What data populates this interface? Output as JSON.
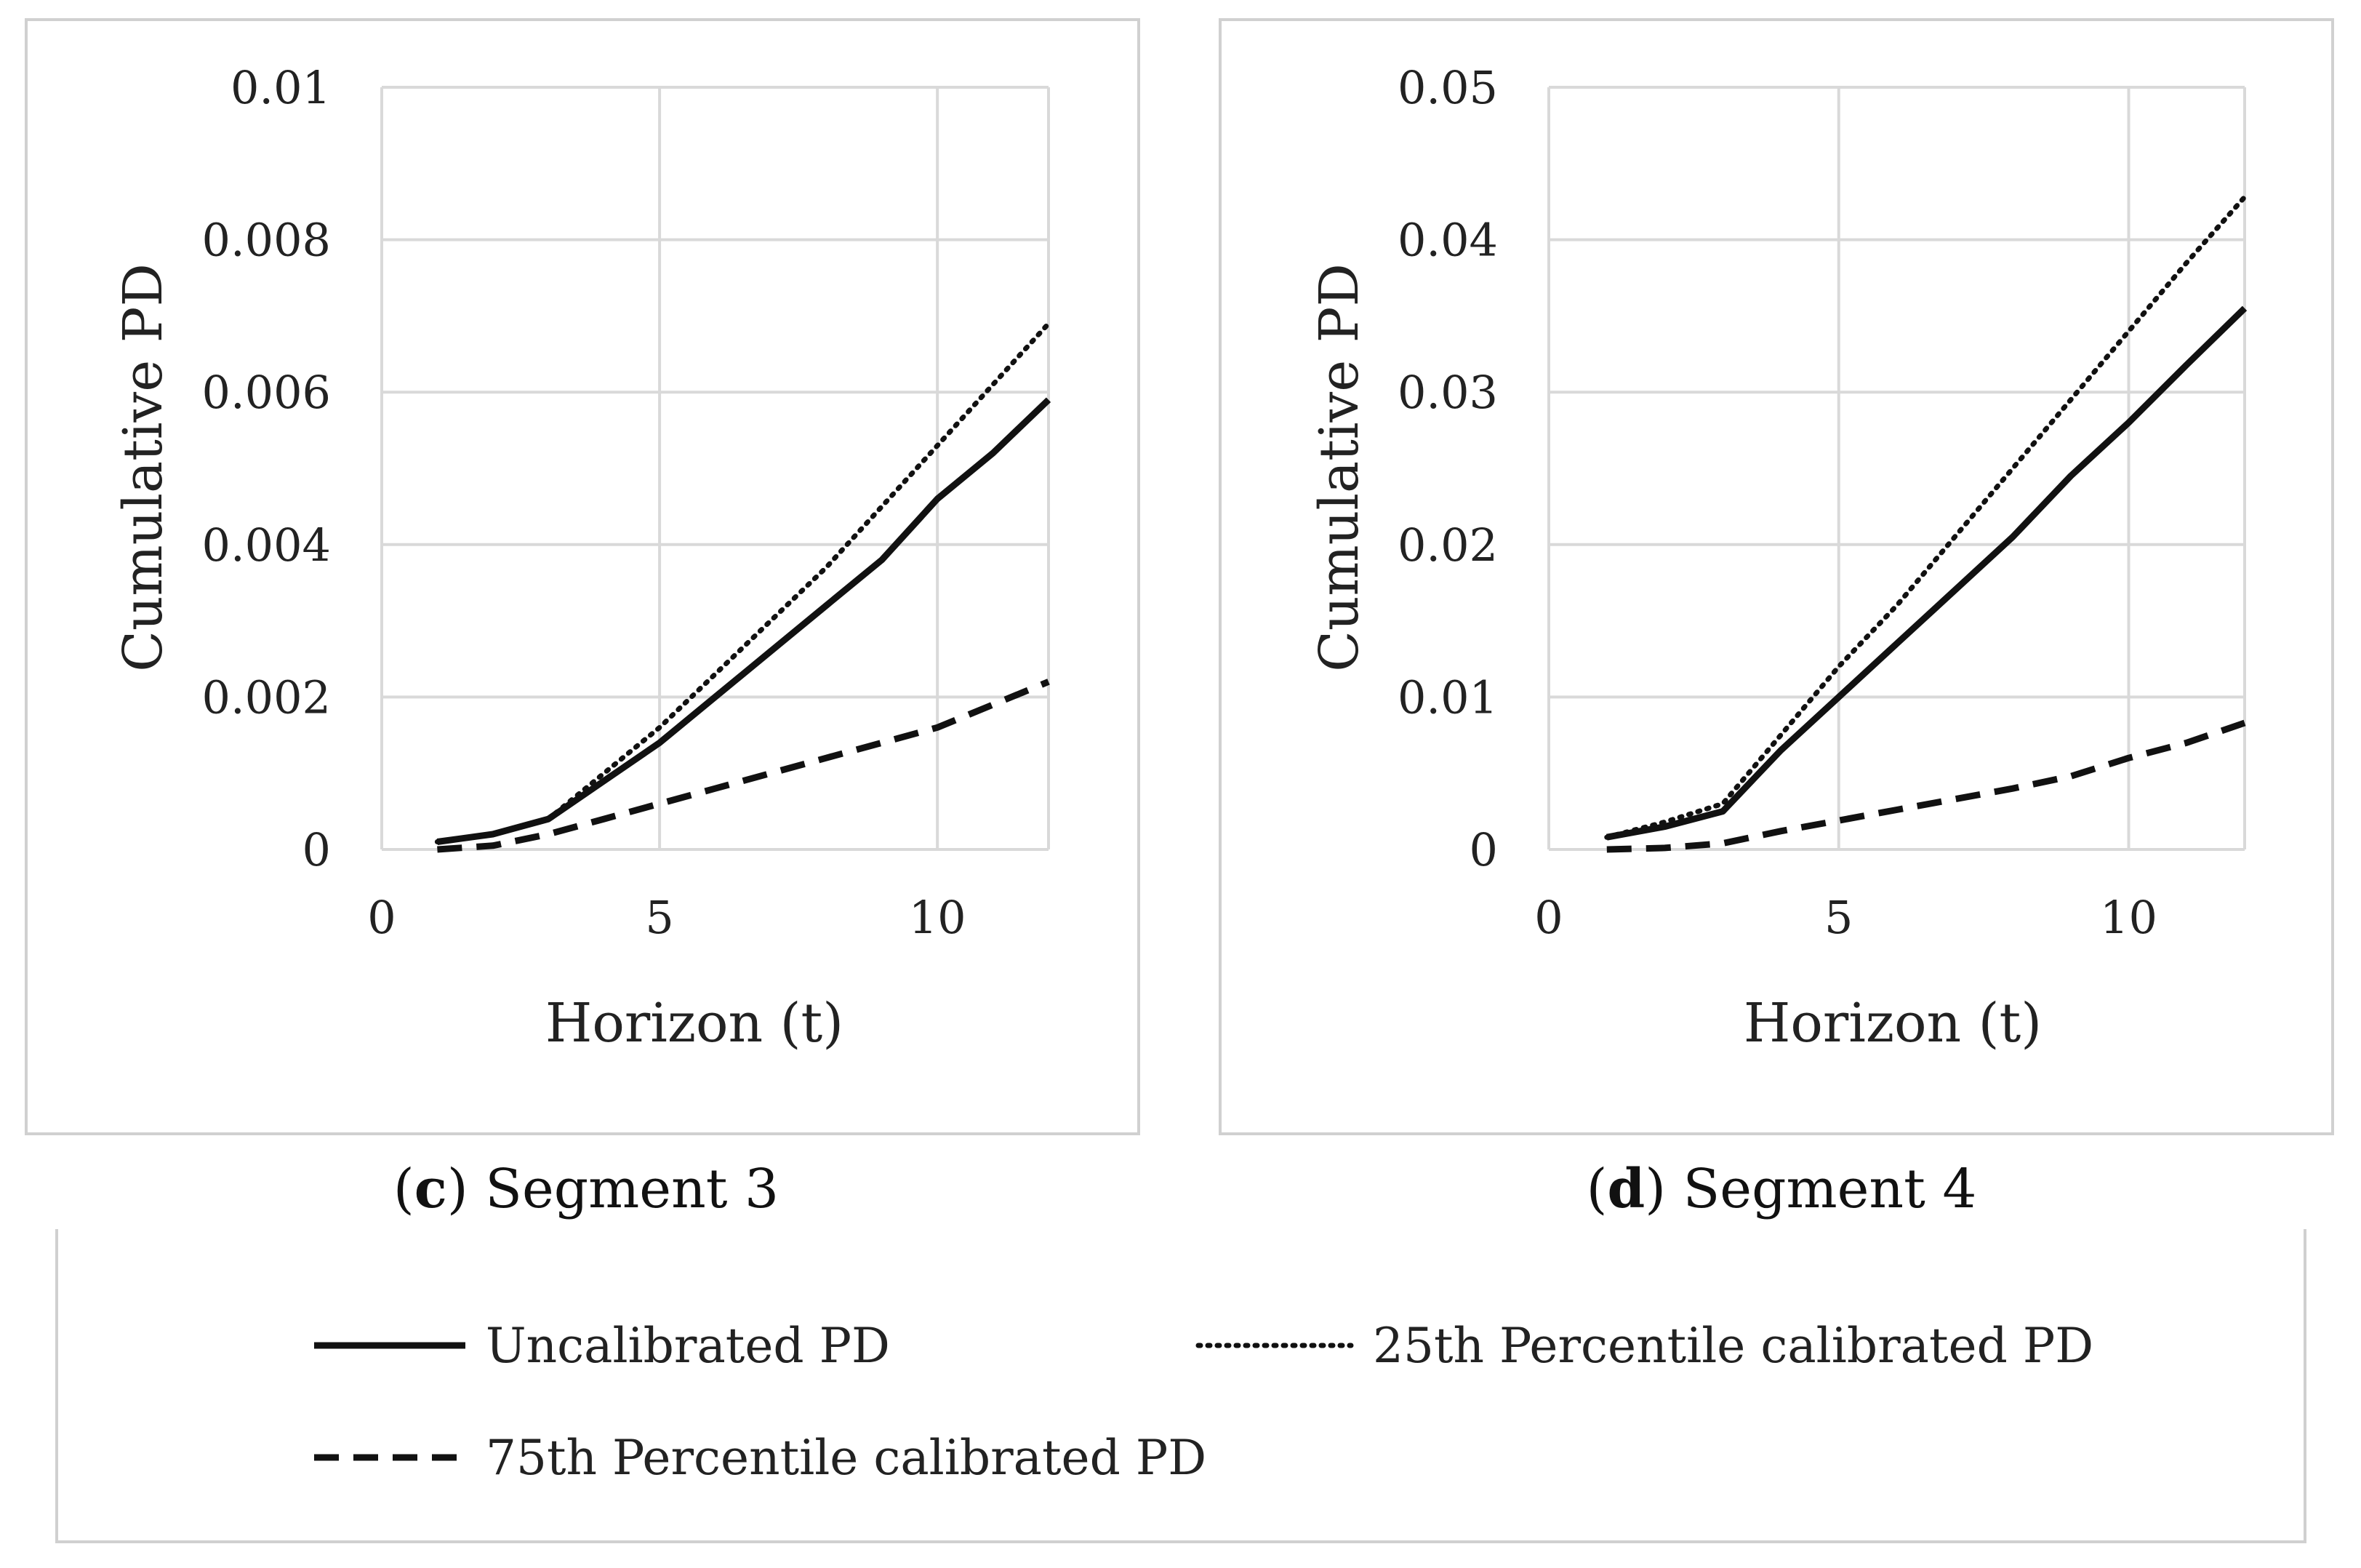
{
  "chart_data": [
    {
      "type": "line",
      "panel_letter": "c",
      "caption": "Segment 3",
      "xlabel": "Horizon (t)",
      "ylabel": "Cumulative PD",
      "xlim": [
        0,
        12
      ],
      "ylim": [
        0,
        0.01
      ],
      "x_ticks": [
        0,
        5,
        10
      ],
      "x_tick_labels": [
        "0",
        "5",
        "10"
      ],
      "y_ticks": [
        0,
        0.002,
        0.004,
        0.006,
        0.008,
        0.01
      ],
      "y_tick_labels": [
        "0",
        "0.002",
        "0.004",
        "0.006",
        "0.008",
        "0.01"
      ],
      "grid": true,
      "x": [
        1,
        2,
        3,
        4,
        5,
        6,
        7,
        8,
        9,
        10,
        11,
        12
      ],
      "series": [
        {
          "name": "Uncalibrated PD",
          "style": "solid",
          "values": [
            0.0001,
            0.0002,
            0.0004,
            0.0009,
            0.0014,
            0.002,
            0.0026,
            0.0032,
            0.0038,
            0.0046,
            0.0052,
            0.0059
          ]
        },
        {
          "name": "25th Percentile calibrated PD",
          "style": "dotted",
          "values": [
            0.0001,
            0.0002,
            0.0004,
            0.001,
            0.0016,
            0.0023,
            0.003,
            0.0037,
            0.0045,
            0.0053,
            0.0061,
            0.0069
          ]
        },
        {
          "name": "75th Percentile calibrated PD",
          "style": "dashed",
          "values": [
            0.0,
            5e-05,
            0.0002,
            0.0004,
            0.0006,
            0.0008,
            0.001,
            0.0012,
            0.0014,
            0.0016,
            0.0019,
            0.0022
          ]
        }
      ]
    },
    {
      "type": "line",
      "panel_letter": "d",
      "caption": "Segment 4",
      "xlabel": "Horizon (t)",
      "ylabel": "Cumulative PD",
      "xlim": [
        0,
        12
      ],
      "ylim": [
        0,
        0.05
      ],
      "x_ticks": [
        0,
        5,
        10
      ],
      "x_tick_labels": [
        "0",
        "5",
        "10"
      ],
      "y_ticks": [
        0,
        0.01,
        0.02,
        0.03,
        0.04,
        0.05
      ],
      "y_tick_labels": [
        "0",
        "0.01",
        "0.02",
        "0.03",
        "0.04",
        "0.05"
      ],
      "grid": true,
      "x": [
        1,
        2,
        3,
        4,
        5,
        6,
        7,
        8,
        9,
        10,
        11,
        12
      ],
      "series": [
        {
          "name": "Uncalibrated PD",
          "style": "solid",
          "values": [
            0.0008,
            0.0015,
            0.0025,
            0.0065,
            0.01,
            0.0135,
            0.017,
            0.0205,
            0.0245,
            0.028,
            0.0318,
            0.0355
          ]
        },
        {
          "name": "25th Percentile calibrated PD",
          "style": "dotted",
          "values": [
            0.0008,
            0.0018,
            0.003,
            0.0075,
            0.012,
            0.016,
            0.0205,
            0.025,
            0.0295,
            0.034,
            0.0385,
            0.0428
          ]
        },
        {
          "name": "75th Percentile calibrated PD",
          "style": "dashed",
          "values": [
            0.0,
            0.0001,
            0.0004,
            0.0012,
            0.0019,
            0.0026,
            0.0033,
            0.004,
            0.0048,
            0.006,
            0.007,
            0.0083
          ]
        }
      ]
    }
  ],
  "legend": {
    "items": [
      {
        "label": "Uncalibrated PD",
        "style": "solid"
      },
      {
        "label": "25th Percentile calibrated PD",
        "style": "dotted"
      },
      {
        "label": "75th Percentile calibrated PD",
        "style": "dashed"
      }
    ]
  }
}
